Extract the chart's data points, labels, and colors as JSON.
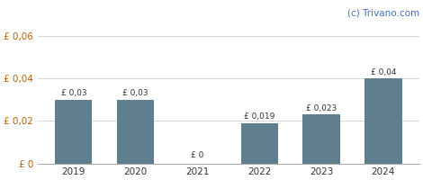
{
  "categories": [
    "2019",
    "2020",
    "2021",
    "2022",
    "2023",
    "2024"
  ],
  "values": [
    0.03,
    0.03,
    0.0,
    0.019,
    0.023,
    0.04
  ],
  "bar_labels": [
    "£ 0,03",
    "£ 0,03",
    "£ 0",
    "£ 0,019",
    "£ 0,023",
    "£ 0,04"
  ],
  "bar_color": "#5f7f8e",
  "yticks": [
    0.0,
    0.02,
    0.04,
    0.06
  ],
  "ytick_labels": [
    "£ 0",
    "£ 0,02",
    "£ 0,04",
    "£ 0,06"
  ],
  "ylim": [
    0,
    0.068
  ],
  "watermark": "(c) Trivano.com",
  "background_color": "#ffffff",
  "grid_color": "#d8d8d8",
  "bar_label_fontsize": 6.5,
  "axis_label_fontsize": 7.5,
  "watermark_fontsize": 7.5,
  "ytick_color": "#c06000",
  "xtick_color": "#333333",
  "bar_label_color": "#333333",
  "watermark_color": "#4472c4",
  "bar_width": 0.6
}
